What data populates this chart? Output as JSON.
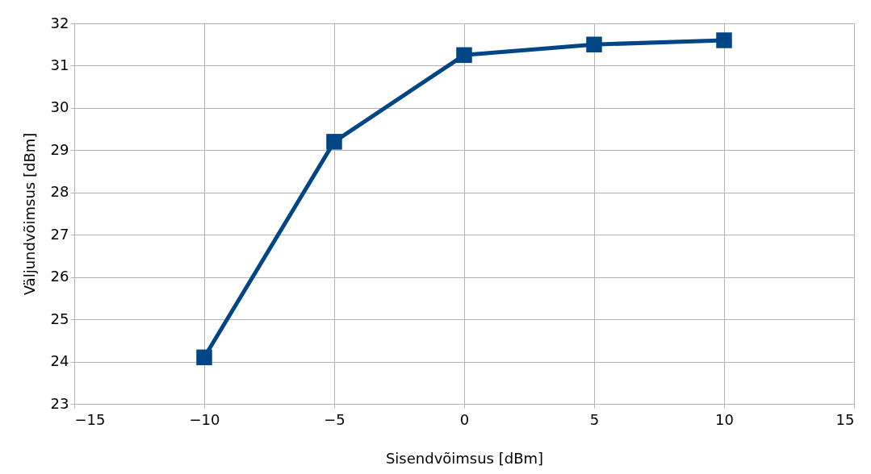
{
  "chart_data": {
    "type": "line",
    "xlabel": "Sisendvõimsus [dBm]",
    "ylabel": "Väljundvõimsus [dBm]",
    "x": [
      -10,
      -5,
      0,
      5,
      10
    ],
    "series": [
      {
        "color": "#004586",
        "values": [
          24.1,
          29.2,
          31.25,
          31.5,
          31.6
        ]
      }
    ],
    "xlim": [
      -15,
      15
    ],
    "xticks": [
      -15,
      -10,
      -5,
      0,
      5,
      10,
      15
    ],
    "ylim": [
      23,
      32
    ],
    "yticks": [
      23,
      24,
      25,
      26,
      27,
      28,
      29,
      30,
      31,
      32
    ],
    "grid": true,
    "marker": "square",
    "line_style": "solid"
  }
}
